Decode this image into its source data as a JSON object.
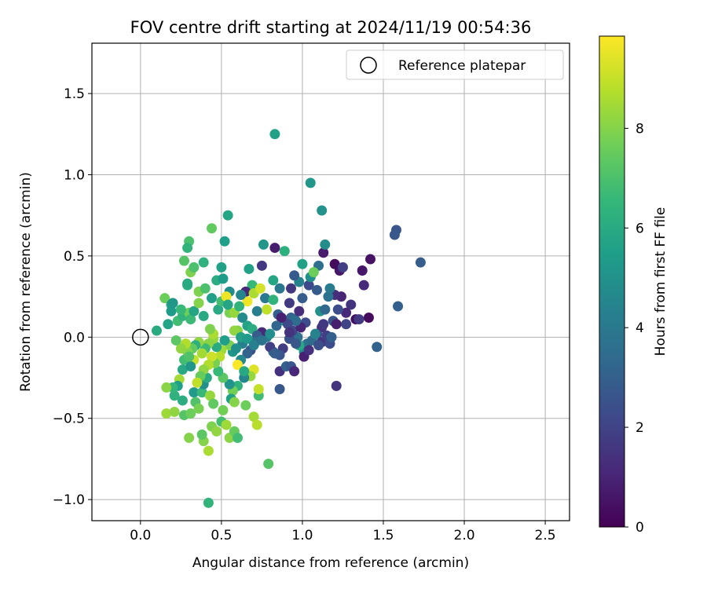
{
  "chart_data": {
    "type": "scatter",
    "title": "FOV centre drift starting at 2024/11/19 00:54:36",
    "xlabel": "Angular distance from reference (arcmin)",
    "ylabel": "Rotation from reference (arcmin)",
    "xlim": [
      -0.3,
      2.65
    ],
    "ylim": [
      -1.13,
      1.81
    ],
    "xticks": [
      0.0,
      0.5,
      1.0,
      1.5,
      2.0,
      2.5
    ],
    "xtick_labels": [
      "0.0",
      "0.5",
      "1.0",
      "1.5",
      "2.0",
      "2.5"
    ],
    "yticks": [
      -1.0,
      -0.5,
      0.0,
      0.5,
      1.0,
      1.5
    ],
    "ytick_labels": [
      "−1.0",
      "−0.5",
      "0.0",
      "0.5",
      "1.0",
      "1.5"
    ],
    "grid": true,
    "legend": {
      "placement": "top-right",
      "label": "Reference platepar",
      "marker": "open-circle"
    },
    "reference_point": {
      "x": 0.0,
      "y": 0.0
    },
    "colorbar": {
      "label": "Hours from first FF file",
      "colormap": "viridis",
      "range": [
        0,
        9.85
      ],
      "ticks": [
        0,
        2,
        4,
        6,
        8
      ],
      "tick_labels": [
        "0",
        "2",
        "4",
        "6",
        "8"
      ]
    },
    "colormap_stops": [
      "#440154",
      "#482878",
      "#3e4989",
      "#31688e",
      "#26828e",
      "#1f9e89",
      "#35b779",
      "#6ece58",
      "#b5de2b",
      "#fde725"
    ],
    "points": [
      {
        "x": 0.83,
        "y": 1.25,
        "c": 5.6
      },
      {
        "x": 1.05,
        "y": 0.95,
        "c": 5.2
      },
      {
        "x": 1.12,
        "y": 0.78,
        "c": 5.0
      },
      {
        "x": 0.54,
        "y": 0.75,
        "c": 5.8
      },
      {
        "x": 1.58,
        "y": 0.66,
        "c": 2.6
      },
      {
        "x": 1.57,
        "y": 0.63,
        "c": 2.7
      },
      {
        "x": 1.73,
        "y": 0.46,
        "c": 2.9
      },
      {
        "x": 1.59,
        "y": 0.19,
        "c": 3.0
      },
      {
        "x": 1.46,
        "y": -0.06,
        "c": 3.1
      },
      {
        "x": 1.21,
        "y": -0.3,
        "c": 1.5
      },
      {
        "x": 1.42,
        "y": 0.48,
        "c": 0.5
      },
      {
        "x": 1.37,
        "y": 0.41,
        "c": 0.6
      },
      {
        "x": 1.23,
        "y": 0.41,
        "c": 0.6
      },
      {
        "x": 1.2,
        "y": 0.45,
        "c": 0.3
      },
      {
        "x": 1.25,
        "y": 0.43,
        "c": 1.9
      },
      {
        "x": 1.13,
        "y": 0.52,
        "c": 0.7
      },
      {
        "x": 1.14,
        "y": 0.57,
        "c": 4.8
      },
      {
        "x": 1.38,
        "y": 0.32,
        "c": 1.2
      },
      {
        "x": 1.24,
        "y": 0.25,
        "c": 1.0
      },
      {
        "x": 1.3,
        "y": 0.2,
        "c": 1.5
      },
      {
        "x": 1.33,
        "y": 0.11,
        "c": 0.4
      },
      {
        "x": 1.41,
        "y": 0.12,
        "c": 0.3
      },
      {
        "x": 1.35,
        "y": 0.11,
        "c": 1.7
      },
      {
        "x": 1.27,
        "y": 0.15,
        "c": 1.1
      },
      {
        "x": 1.2,
        "y": 0.26,
        "c": 1.3
      },
      {
        "x": 1.1,
        "y": 0.44,
        "c": 3.6
      },
      {
        "x": 1.05,
        "y": 0.37,
        "c": 4.2
      },
      {
        "x": 1.0,
        "y": 0.45,
        "c": 5.6
      },
      {
        "x": 0.98,
        "y": 0.34,
        "c": 4.4
      },
      {
        "x": 0.95,
        "y": 0.38,
        "c": 2.8
      },
      {
        "x": 0.93,
        "y": 0.3,
        "c": 1.6
      },
      {
        "x": 0.86,
        "y": 0.3,
        "c": 3.9
      },
      {
        "x": 0.89,
        "y": 0.53,
        "c": 6.2
      },
      {
        "x": 0.83,
        "y": 0.55,
        "c": 0.8
      },
      {
        "x": 0.76,
        "y": 0.57,
        "c": 5.2
      },
      {
        "x": 0.75,
        "y": 0.44,
        "c": 1.6
      },
      {
        "x": 0.67,
        "y": 0.42,
        "c": 5.6
      },
      {
        "x": 0.69,
        "y": 0.32,
        "c": 6.6
      },
      {
        "x": 0.65,
        "y": 0.28,
        "c": 1.1
      },
      {
        "x": 0.7,
        "y": 0.27,
        "c": 8.6
      },
      {
        "x": 0.74,
        "y": 0.3,
        "c": 9.2
      },
      {
        "x": 0.66,
        "y": 0.22,
        "c": 9.6
      },
      {
        "x": 0.62,
        "y": 0.26,
        "c": 4.5
      },
      {
        "x": 0.55,
        "y": 0.28,
        "c": 4.8
      },
      {
        "x": 0.5,
        "y": 0.43,
        "c": 5.6
      },
      {
        "x": 0.52,
        "y": 0.59,
        "c": 5.5
      },
      {
        "x": 0.44,
        "y": 0.67,
        "c": 7.4
      },
      {
        "x": 0.3,
        "y": 0.59,
        "c": 7.0
      },
      {
        "x": 0.29,
        "y": 0.55,
        "c": 6.4
      },
      {
        "x": 0.27,
        "y": 0.47,
        "c": 7.2
      },
      {
        "x": 0.31,
        "y": 0.4,
        "c": 7.9
      },
      {
        "x": 0.33,
        "y": 0.43,
        "c": 7.0
      },
      {
        "x": 0.39,
        "y": 0.46,
        "c": 6.3
      },
      {
        "x": 0.29,
        "y": 0.32,
        "c": 6.2
      },
      {
        "x": 0.29,
        "y": 0.33,
        "c": 6.0
      },
      {
        "x": 0.15,
        "y": 0.24,
        "c": 7.6
      },
      {
        "x": 0.19,
        "y": 0.2,
        "c": 5.6
      },
      {
        "x": 0.19,
        "y": 0.16,
        "c": 5.4
      },
      {
        "x": 0.2,
        "y": 0.21,
        "c": 5.2
      },
      {
        "x": 0.23,
        "y": 0.1,
        "c": 6.8
      },
      {
        "x": 0.26,
        "y": 0.13,
        "c": 6.4
      },
      {
        "x": 0.3,
        "y": 0.15,
        "c": 7.6
      },
      {
        "x": 0.31,
        "y": 0.11,
        "c": 6.7
      },
      {
        "x": 0.33,
        "y": 0.16,
        "c": 5.8
      },
      {
        "x": 0.36,
        "y": 0.21,
        "c": 8.0
      },
      {
        "x": 0.39,
        "y": 0.13,
        "c": 5.9
      },
      {
        "x": 0.44,
        "y": 0.24,
        "c": 5.5
      },
      {
        "x": 0.48,
        "y": 0.17,
        "c": 5.9
      },
      {
        "x": 0.5,
        "y": 0.22,
        "c": 6.8
      },
      {
        "x": 0.53,
        "y": 0.25,
        "c": 9.6
      },
      {
        "x": 0.55,
        "y": 0.15,
        "c": 7.8
      },
      {
        "x": 0.58,
        "y": 0.15,
        "c": 8.3
      },
      {
        "x": 0.61,
        "y": 0.19,
        "c": 6.4
      },
      {
        "x": 0.63,
        "y": 0.12,
        "c": 4.7
      },
      {
        "x": 0.66,
        "y": 0.07,
        "c": 5.7
      },
      {
        "x": 0.69,
        "y": 0.05,
        "c": 6.1
      },
      {
        "x": 0.72,
        "y": 0.16,
        "c": 4.2
      },
      {
        "x": 0.77,
        "y": 0.24,
        "c": 4.0
      },
      {
        "x": 0.78,
        "y": 0.17,
        "c": 8.9
      },
      {
        "x": 0.82,
        "y": 0.23,
        "c": 6.4
      },
      {
        "x": 0.82,
        "y": 0.35,
        "c": 5.8
      },
      {
        "x": 0.85,
        "y": 0.14,
        "c": 3.0
      },
      {
        "x": 0.87,
        "y": 0.12,
        "c": 2.4
      },
      {
        "x": 0.89,
        "y": 0.1,
        "c": 4.6
      },
      {
        "x": 0.92,
        "y": 0.21,
        "c": 1.7
      },
      {
        "x": 0.93,
        "y": 0.12,
        "c": 3.1
      },
      {
        "x": 0.95,
        "y": 0.11,
        "c": 3.4
      },
      {
        "x": 0.98,
        "y": 0.16,
        "c": 1.3
      },
      {
        "x": 1.0,
        "y": 0.24,
        "c": 2.9
      },
      {
        "x": 1.02,
        "y": 0.09,
        "c": 2.3
      },
      {
        "x": 1.04,
        "y": 0.32,
        "c": 2.2
      },
      {
        "x": 1.05,
        "y": 0.37,
        "c": 4.9
      },
      {
        "x": 1.07,
        "y": 0.4,
        "c": 7.6
      },
      {
        "x": 1.09,
        "y": 0.29,
        "c": 2.8
      },
      {
        "x": 1.11,
        "y": 0.16,
        "c": 5.0
      },
      {
        "x": 1.14,
        "y": 0.17,
        "c": 3.3
      },
      {
        "x": 1.16,
        "y": 0.25,
        "c": 3.7
      },
      {
        "x": 1.17,
        "y": 0.3,
        "c": 4.1
      },
      {
        "x": 1.19,
        "y": 0.1,
        "c": 2.5
      },
      {
        "x": 1.21,
        "y": 0.08,
        "c": 0.8
      },
      {
        "x": 1.12,
        "y": 0.06,
        "c": 1.4
      },
      {
        "x": 1.09,
        "y": 0.02,
        "c": 2.1
      },
      {
        "x": 1.12,
        "y": -0.03,
        "c": 1.6
      },
      {
        "x": 1.15,
        "y": 0.01,
        "c": 1.9
      },
      {
        "x": 1.17,
        "y": -0.04,
        "c": 2.3
      },
      {
        "x": 1.03,
        "y": -0.04,
        "c": 3.8
      },
      {
        "x": 1.01,
        "y": -0.09,
        "c": 4.8
      },
      {
        "x": 0.98,
        "y": -0.05,
        "c": 5.9
      },
      {
        "x": 0.97,
        "y": 0.0,
        "c": 3.6
      },
      {
        "x": 0.94,
        "y": 0.04,
        "c": 2.1
      },
      {
        "x": 0.92,
        "y": -0.01,
        "c": 2.5
      },
      {
        "x": 0.88,
        "y": -0.07,
        "c": 1.8
      },
      {
        "x": 0.86,
        "y": -0.11,
        "c": 2.6
      },
      {
        "x": 0.82,
        "y": -0.09,
        "c": 3.3
      },
      {
        "x": 0.8,
        "y": -0.06,
        "c": 1.9
      },
      {
        "x": 0.78,
        "y": 0.0,
        "c": 4.1
      },
      {
        "x": 0.75,
        "y": 0.03,
        "c": 1.2
      },
      {
        "x": 0.72,
        "y": 0.01,
        "c": 2.9
      },
      {
        "x": 0.71,
        "y": -0.03,
        "c": 3.6
      },
      {
        "x": 0.68,
        "y": -0.08,
        "c": 2.3
      },
      {
        "x": 0.66,
        "y": -0.1,
        "c": 3.1
      },
      {
        "x": 0.63,
        "y": -0.04,
        "c": 4.3
      },
      {
        "x": 0.62,
        "y": -0.14,
        "c": 4.6
      },
      {
        "x": 0.6,
        "y": -0.17,
        "c": 9.8
      },
      {
        "x": 0.57,
        "y": -0.09,
        "c": 5.2
      },
      {
        "x": 0.55,
        "y": -0.05,
        "c": 7.9
      },
      {
        "x": 0.52,
        "y": -0.02,
        "c": 5.5
      },
      {
        "x": 0.5,
        "y": -0.08,
        "c": 8.4
      },
      {
        "x": 0.49,
        "y": -0.12,
        "c": 8.8
      },
      {
        "x": 0.47,
        "y": -0.06,
        "c": 6.0
      },
      {
        "x": 0.45,
        "y": -0.01,
        "c": 8.3
      },
      {
        "x": 0.45,
        "y": 0.02,
        "c": 8.6
      },
      {
        "x": 0.43,
        "y": 0.05,
        "c": 7.9
      },
      {
        "x": 0.42,
        "y": -0.04,
        "c": 8.1
      },
      {
        "x": 0.4,
        "y": -0.07,
        "c": 6.7
      },
      {
        "x": 0.38,
        "y": -0.1,
        "c": 8.5
      },
      {
        "x": 0.36,
        "y": -0.03,
        "c": 8.2
      },
      {
        "x": 0.34,
        "y": -0.05,
        "c": 6.2
      },
      {
        "x": 0.32,
        "y": -0.07,
        "c": 7.4
      },
      {
        "x": 0.29,
        "y": -0.09,
        "c": 8.0
      },
      {
        "x": 0.27,
        "y": -0.14,
        "c": 6.8
      },
      {
        "x": 0.26,
        "y": -0.2,
        "c": 5.9
      },
      {
        "x": 0.24,
        "y": -0.26,
        "c": 8.5
      },
      {
        "x": 0.23,
        "y": -0.3,
        "c": 5.5
      },
      {
        "x": 0.21,
        "y": -0.36,
        "c": 6.3
      },
      {
        "x": 0.2,
        "y": -0.31,
        "c": 6.5
      },
      {
        "x": 0.16,
        "y": -0.31,
        "c": 8.1
      },
      {
        "x": 0.16,
        "y": -0.47,
        "c": 8.4
      },
      {
        "x": 0.21,
        "y": -0.46,
        "c": 8.2
      },
      {
        "x": 0.26,
        "y": -0.39,
        "c": 6.1
      },
      {
        "x": 0.27,
        "y": -0.48,
        "c": 7.2
      },
      {
        "x": 0.3,
        "y": -0.62,
        "c": 8.0
      },
      {
        "x": 0.31,
        "y": -0.47,
        "c": 7.6
      },
      {
        "x": 0.33,
        "y": -0.34,
        "c": 5.3
      },
      {
        "x": 0.34,
        "y": -0.4,
        "c": 7.1
      },
      {
        "x": 0.36,
        "y": -0.44,
        "c": 7.8
      },
      {
        "x": 0.38,
        "y": -0.34,
        "c": 6.6
      },
      {
        "x": 0.39,
        "y": -0.29,
        "c": 4.9
      },
      {
        "x": 0.41,
        "y": -0.25,
        "c": 6.0
      },
      {
        "x": 0.43,
        "y": -0.36,
        "c": 8.3
      },
      {
        "x": 0.45,
        "y": -0.41,
        "c": 7.4
      },
      {
        "x": 0.44,
        "y": -0.55,
        "c": 7.9
      },
      {
        "x": 0.47,
        "y": -0.58,
        "c": 8.2
      },
      {
        "x": 0.5,
        "y": -0.52,
        "c": 6.9
      },
      {
        "x": 0.51,
        "y": -0.45,
        "c": 7.7
      },
      {
        "x": 0.53,
        "y": -0.54,
        "c": 8.4
      },
      {
        "x": 0.55,
        "y": -0.62,
        "c": 8.1
      },
      {
        "x": 0.58,
        "y": -0.58,
        "c": 7.5
      },
      {
        "x": 0.6,
        "y": -0.62,
        "c": 6.8
      },
      {
        "x": 0.42,
        "y": -0.7,
        "c": 8.6
      },
      {
        "x": 0.39,
        "y": -0.64,
        "c": 8.0
      },
      {
        "x": 0.38,
        "y": -0.6,
        "c": 7.3
      },
      {
        "x": 0.42,
        "y": -1.02,
        "c": 6.4
      },
      {
        "x": 0.79,
        "y": -0.78,
        "c": 7.2
      },
      {
        "x": 0.7,
        "y": -0.49,
        "c": 8.5
      },
      {
        "x": 0.72,
        "y": -0.54,
        "c": 8.8
      },
      {
        "x": 0.73,
        "y": -0.36,
        "c": 6.8
      },
      {
        "x": 0.73,
        "y": -0.32,
        "c": 9.0
      },
      {
        "x": 0.7,
        "y": -0.2,
        "c": 9.4
      },
      {
        "x": 0.68,
        "y": -0.24,
        "c": 8.3
      },
      {
        "x": 0.64,
        "y": -0.25,
        "c": 4.5
      },
      {
        "x": 0.64,
        "y": -0.21,
        "c": 5.9
      },
      {
        "x": 0.6,
        "y": -0.3,
        "c": 6.4
      },
      {
        "x": 0.57,
        "y": -0.33,
        "c": 7.7
      },
      {
        "x": 0.55,
        "y": -0.29,
        "c": 5.1
      },
      {
        "x": 0.56,
        "y": -0.38,
        "c": 5.6
      },
      {
        "x": 0.58,
        "y": -0.4,
        "c": 8.0
      },
      {
        "x": 0.65,
        "y": -0.42,
        "c": 7.6
      },
      {
        "x": 0.51,
        "y": -0.25,
        "c": 7.3
      },
      {
        "x": 0.48,
        "y": -0.21,
        "c": 6.6
      },
      {
        "x": 0.46,
        "y": -0.16,
        "c": 7.8
      },
      {
        "x": 0.44,
        "y": -0.12,
        "c": 9.1
      },
      {
        "x": 0.42,
        "y": -0.17,
        "c": 8.7
      },
      {
        "x": 0.39,
        "y": -0.2,
        "c": 8.2
      },
      {
        "x": 0.37,
        "y": -0.24,
        "c": 7.5
      },
      {
        "x": 0.35,
        "y": -0.28,
        "c": 8.9
      },
      {
        "x": 0.33,
        "y": -0.14,
        "c": 9.0
      },
      {
        "x": 0.31,
        "y": -0.18,
        "c": 5.2
      },
      {
        "x": 0.3,
        "y": -0.12,
        "c": 7.1
      },
      {
        "x": 0.28,
        "y": -0.04,
        "c": 8.7
      },
      {
        "x": 0.25,
        "y": -0.07,
        "c": 8.2
      },
      {
        "x": 0.22,
        "y": -0.02,
        "c": 7.3
      },
      {
        "x": 0.1,
        "y": 0.04,
        "c": 6.0
      },
      {
        "x": 0.17,
        "y": 0.08,
        "c": 5.7
      },
      {
        "x": 0.25,
        "y": 0.17,
        "c": 6.6
      },
      {
        "x": 0.36,
        "y": 0.28,
        "c": 7.9
      },
      {
        "x": 0.4,
        "y": 0.3,
        "c": 7.0
      },
      {
        "x": 0.47,
        "y": 0.35,
        "c": 6.1
      },
      {
        "x": 0.51,
        "y": 0.36,
        "c": 5.4
      },
      {
        "x": 0.54,
        "y": 0.2,
        "c": 5.8
      },
      {
        "x": 0.6,
        "y": 0.04,
        "c": 8.0
      },
      {
        "x": 0.58,
        "y": 0.04,
        "c": 8.2
      },
      {
        "x": 0.62,
        "y": 0.0,
        "c": 5.6
      },
      {
        "x": 0.59,
        "y": -0.07,
        "c": 4.9
      },
      {
        "x": 0.66,
        "y": -0.01,
        "c": 5.3
      },
      {
        "x": 0.7,
        "y": -0.05,
        "c": 4.3
      },
      {
        "x": 0.75,
        "y": -0.02,
        "c": 3.8
      },
      {
        "x": 0.8,
        "y": 0.02,
        "c": 4.9
      },
      {
        "x": 0.83,
        "y": -0.1,
        "c": 2.9
      },
      {
        "x": 0.86,
        "y": -0.21,
        "c": 1.4
      },
      {
        "x": 0.9,
        "y": -0.18,
        "c": 3.0
      },
      {
        "x": 0.93,
        "y": -0.18,
        "c": 2.6
      },
      {
        "x": 0.95,
        "y": -0.21,
        "c": 1.1
      },
      {
        "x": 0.86,
        "y": -0.32,
        "c": 2.7
      },
      {
        "x": 1.01,
        "y": -0.12,
        "c": 0.9
      },
      {
        "x": 1.04,
        "y": -0.08,
        "c": 1.4
      },
      {
        "x": 1.06,
        "y": -0.02,
        "c": 3.4
      },
      {
        "x": 1.08,
        "y": 0.02,
        "c": 4.4
      },
      {
        "x": 1.1,
        "y": -0.05,
        "c": 2.4
      },
      {
        "x": 1.13,
        "y": 0.08,
        "c": 1.7
      },
      {
        "x": 1.18,
        "y": 0.0,
        "c": 3.0
      },
      {
        "x": 1.22,
        "y": 0.17,
        "c": 2.3
      },
      {
        "x": 1.27,
        "y": 0.08,
        "c": 2.0
      },
      {
        "x": 0.99,
        "y": 0.06,
        "c": 1.0
      },
      {
        "x": 0.96,
        "y": 0.1,
        "c": 3.5
      },
      {
        "x": 0.91,
        "y": 0.08,
        "c": 2.2
      },
      {
        "x": 0.87,
        "y": 0.12,
        "c": 0.9
      },
      {
        "x": 0.84,
        "y": 0.07,
        "c": 3.2
      },
      {
        "x": 0.96,
        "y": -0.04,
        "c": 2.7
      },
      {
        "x": 0.92,
        "y": 0.03,
        "c": 1.5
      }
    ]
  }
}
